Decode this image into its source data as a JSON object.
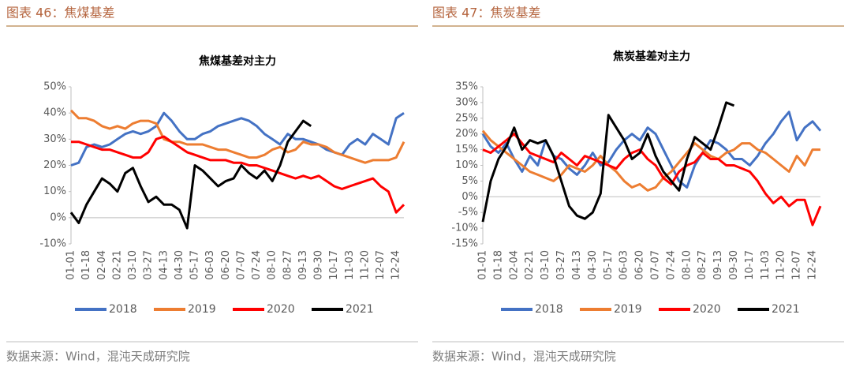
{
  "chart_data": [
    {
      "type": "line",
      "caption": "图表 46：焦煤基差",
      "title": "焦煤基差对主力",
      "source": "数据来源：Wind，混沌天成研究院",
      "categories": [
        "01-01",
        null,
        "01-18",
        null,
        "02-04",
        null,
        "02-21",
        null,
        "03-10",
        null,
        "03-27",
        null,
        "04-13",
        null,
        "04-30",
        null,
        "05-17",
        null,
        "06-03",
        null,
        "06-20",
        null,
        "07-07",
        null,
        "07-24",
        null,
        "08-10",
        null,
        "08-27",
        null,
        "09-13",
        null,
        "09-30",
        null,
        "10-17",
        null,
        "11-03",
        null,
        "11-20",
        null,
        "12-07",
        null,
        "12-24",
        null
      ],
      "ylim": [
        -10,
        50
      ],
      "yticks": [
        {
          "value": -10,
          "label": "-10%"
        },
        {
          "value": 0,
          "label": "0%"
        },
        {
          "value": 10,
          "label": "10%"
        },
        {
          "value": 20,
          "label": "20%"
        },
        {
          "value": 30,
          "label": "30%"
        },
        {
          "value": 40,
          "label": "40%"
        },
        {
          "value": 50,
          "label": "50%"
        }
      ],
      "series": [
        {
          "name": "2018",
          "color": "#4472c4",
          "values": [
            20,
            21,
            27,
            28,
            27,
            28,
            30,
            32,
            33,
            32,
            33,
            35,
            40,
            37,
            33,
            30,
            30,
            32,
            33,
            35,
            36,
            37,
            38,
            37,
            35,
            32,
            30,
            28,
            32,
            30,
            30,
            29,
            28,
            26,
            25,
            24,
            28,
            30,
            28,
            32,
            30,
            28,
            38,
            40
          ]
        },
        {
          "name": "2019",
          "color": "#ed7d31",
          "values": [
            41,
            38,
            38,
            37,
            35,
            34,
            35,
            34,
            36,
            37,
            37,
            36,
            30,
            29,
            29,
            28,
            28,
            28,
            27,
            26,
            26,
            25,
            24,
            23,
            23,
            24,
            26,
            27,
            25,
            26,
            29,
            28,
            28,
            27,
            25,
            24,
            23,
            22,
            21,
            22,
            22,
            22,
            23,
            29
          ]
        },
        {
          "name": "2020",
          "color": "#ff0000",
          "values": [
            29,
            29,
            28,
            27,
            26,
            26,
            25,
            24,
            23,
            23,
            25,
            30,
            31,
            29,
            27,
            25,
            24,
            23,
            22,
            22,
            22,
            21,
            21,
            20,
            20,
            19,
            18,
            17,
            16,
            15,
            16,
            15,
            16,
            14,
            12,
            11,
            12,
            13,
            14,
            15,
            12,
            10,
            2,
            5
          ]
        },
        {
          "name": "2021",
          "color": "#000000",
          "values": [
            2,
            -2,
            5,
            10,
            15,
            13,
            10,
            17,
            19,
            12,
            6,
            8,
            5,
            5,
            3,
            -4,
            20,
            18,
            15,
            12,
            14,
            15,
            20,
            17,
            15,
            18,
            14,
            20,
            29,
            33,
            37,
            35,
            null,
            null,
            null,
            null,
            null,
            null,
            null,
            null,
            null,
            null,
            null,
            null
          ]
        }
      ]
    },
    {
      "type": "line",
      "caption": "图表 47：焦炭基差",
      "title": "焦炭基差对主力",
      "source": "数据来源：Wind，混沌天成研究院",
      "categories": [
        "01-01",
        null,
        "01-18",
        null,
        "02-04",
        null,
        "02-21",
        null,
        "03-10",
        null,
        "03-27",
        null,
        "04-13",
        null,
        "04-30",
        null,
        "05-17",
        null,
        "06-03",
        null,
        "06-20",
        null,
        "07-07",
        null,
        "07-24",
        null,
        "08-10",
        null,
        "08-27",
        null,
        "09-13",
        null,
        "09-30",
        null,
        "10-17",
        null,
        "11-03",
        null,
        "11-20",
        null,
        "12-07",
        null,
        "12-24",
        null
      ],
      "ylim": [
        -15,
        35
      ],
      "yticks": [
        {
          "value": -15,
          "label": "-15%"
        },
        {
          "value": -10,
          "label": "-10%"
        },
        {
          "value": -5,
          "label": "-5%"
        },
        {
          "value": 0,
          "label": "0%"
        },
        {
          "value": 5,
          "label": "5%"
        },
        {
          "value": 10,
          "label": "10%"
        },
        {
          "value": 15,
          "label": "15%"
        },
        {
          "value": 20,
          "label": "20%"
        },
        {
          "value": 25,
          "label": "25%"
        },
        {
          "value": 30,
          "label": "30%"
        },
        {
          "value": 35,
          "label": "35%"
        }
      ],
      "series": [
        {
          "name": "2018",
          "color": "#4472c4",
          "values": [
            20,
            16,
            14,
            17,
            12,
            8,
            13,
            10,
            18,
            13,
            12,
            9,
            7,
            10,
            14,
            10,
            11,
            15,
            18,
            20,
            18,
            22,
            20,
            15,
            10,
            5,
            3,
            10,
            14,
            18,
            17,
            15,
            12,
            12,
            10,
            13,
            17,
            20,
            24,
            27,
            18,
            22,
            24,
            21
          ]
        },
        {
          "name": "2019",
          "color": "#ed7d31",
          "values": [
            21,
            18,
            16,
            14,
            12,
            10,
            8,
            7,
            6,
            5,
            7,
            10,
            9,
            8,
            10,
            13,
            10,
            8,
            5,
            3,
            4,
            2,
            3,
            6,
            8,
            11,
            14,
            17,
            15,
            13,
            12,
            14,
            15,
            17,
            17,
            15,
            14,
            12,
            10,
            8,
            13,
            10,
            15,
            15
          ]
        },
        {
          "name": "2020",
          "color": "#ff0000",
          "values": [
            15,
            14,
            16,
            18,
            20,
            17,
            14,
            13,
            12,
            11,
            14,
            12,
            10,
            13,
            12,
            11,
            10,
            9,
            12,
            14,
            15,
            12,
            10,
            6,
            4,
            8,
            10,
            11,
            14,
            12,
            12,
            10,
            10,
            9,
            8,
            5,
            1,
            -2,
            0,
            -3,
            -1,
            -1,
            -9,
            -3
          ]
        },
        {
          "name": "2021",
          "color": "#000000",
          "values": [
            -8,
            5,
            12,
            16,
            22,
            15,
            18,
            17,
            18,
            13,
            5,
            -3,
            -6,
            -7,
            -5,
            1,
            26,
            22,
            18,
            12,
            14,
            20,
            13,
            8,
            5,
            2,
            12,
            19,
            17,
            15,
            22,
            30,
            29,
            null,
            null,
            null,
            null,
            null,
            null,
            null,
            null,
            null,
            null,
            null
          ]
        }
      ]
    }
  ]
}
